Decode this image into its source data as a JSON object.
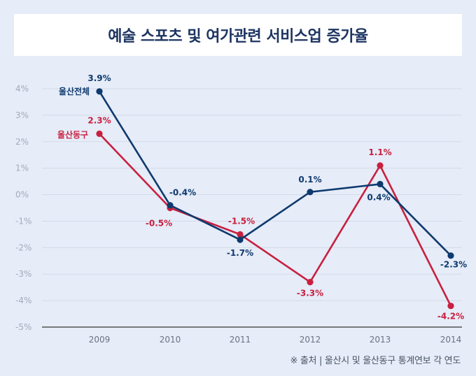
{
  "colors": {
    "background": "#e6ecf8",
    "title_text": "#1d3461",
    "series_1": "#0e3a6e",
    "series_2": "#c8203f"
  },
  "title": "예술 스포츠 및 여가관련 서비스업 증가율",
  "source": "※ 출처 | 울산시 및 울산동구 통계연보 각 연도",
  "chart_data": {
    "type": "line",
    "title": "예술 스포츠 및 여가관련 서비스업 증가율",
    "x": [
      "2009",
      "2010",
      "2011",
      "2012",
      "2013",
      "2014"
    ],
    "ylim": [
      -5,
      4
    ],
    "yticks": [
      "4%",
      "3%",
      "2%",
      "1%",
      "0%",
      "-1%",
      "-2%",
      "-3%",
      "-4%",
      "-5%"
    ],
    "grid": true,
    "series": [
      {
        "name": "울산전체",
        "color": "#0e3a6e",
        "values": [
          3.9,
          -0.4,
          -1.7,
          0.1,
          0.4,
          -2.3
        ],
        "labels": [
          "3.9%",
          "-0.4%",
          "-1.7%",
          "0.1%",
          "0.4%",
          "-2.3%"
        ]
      },
      {
        "name": "울산동구",
        "color": "#c8203f",
        "values": [
          2.3,
          -0.5,
          -1.5,
          -3.3,
          1.1,
          -4.2
        ],
        "labels": [
          "2.3%",
          "-0.5%",
          "-1.5%",
          "-3.3%",
          "1.1%",
          "-4.2%"
        ]
      }
    ]
  }
}
